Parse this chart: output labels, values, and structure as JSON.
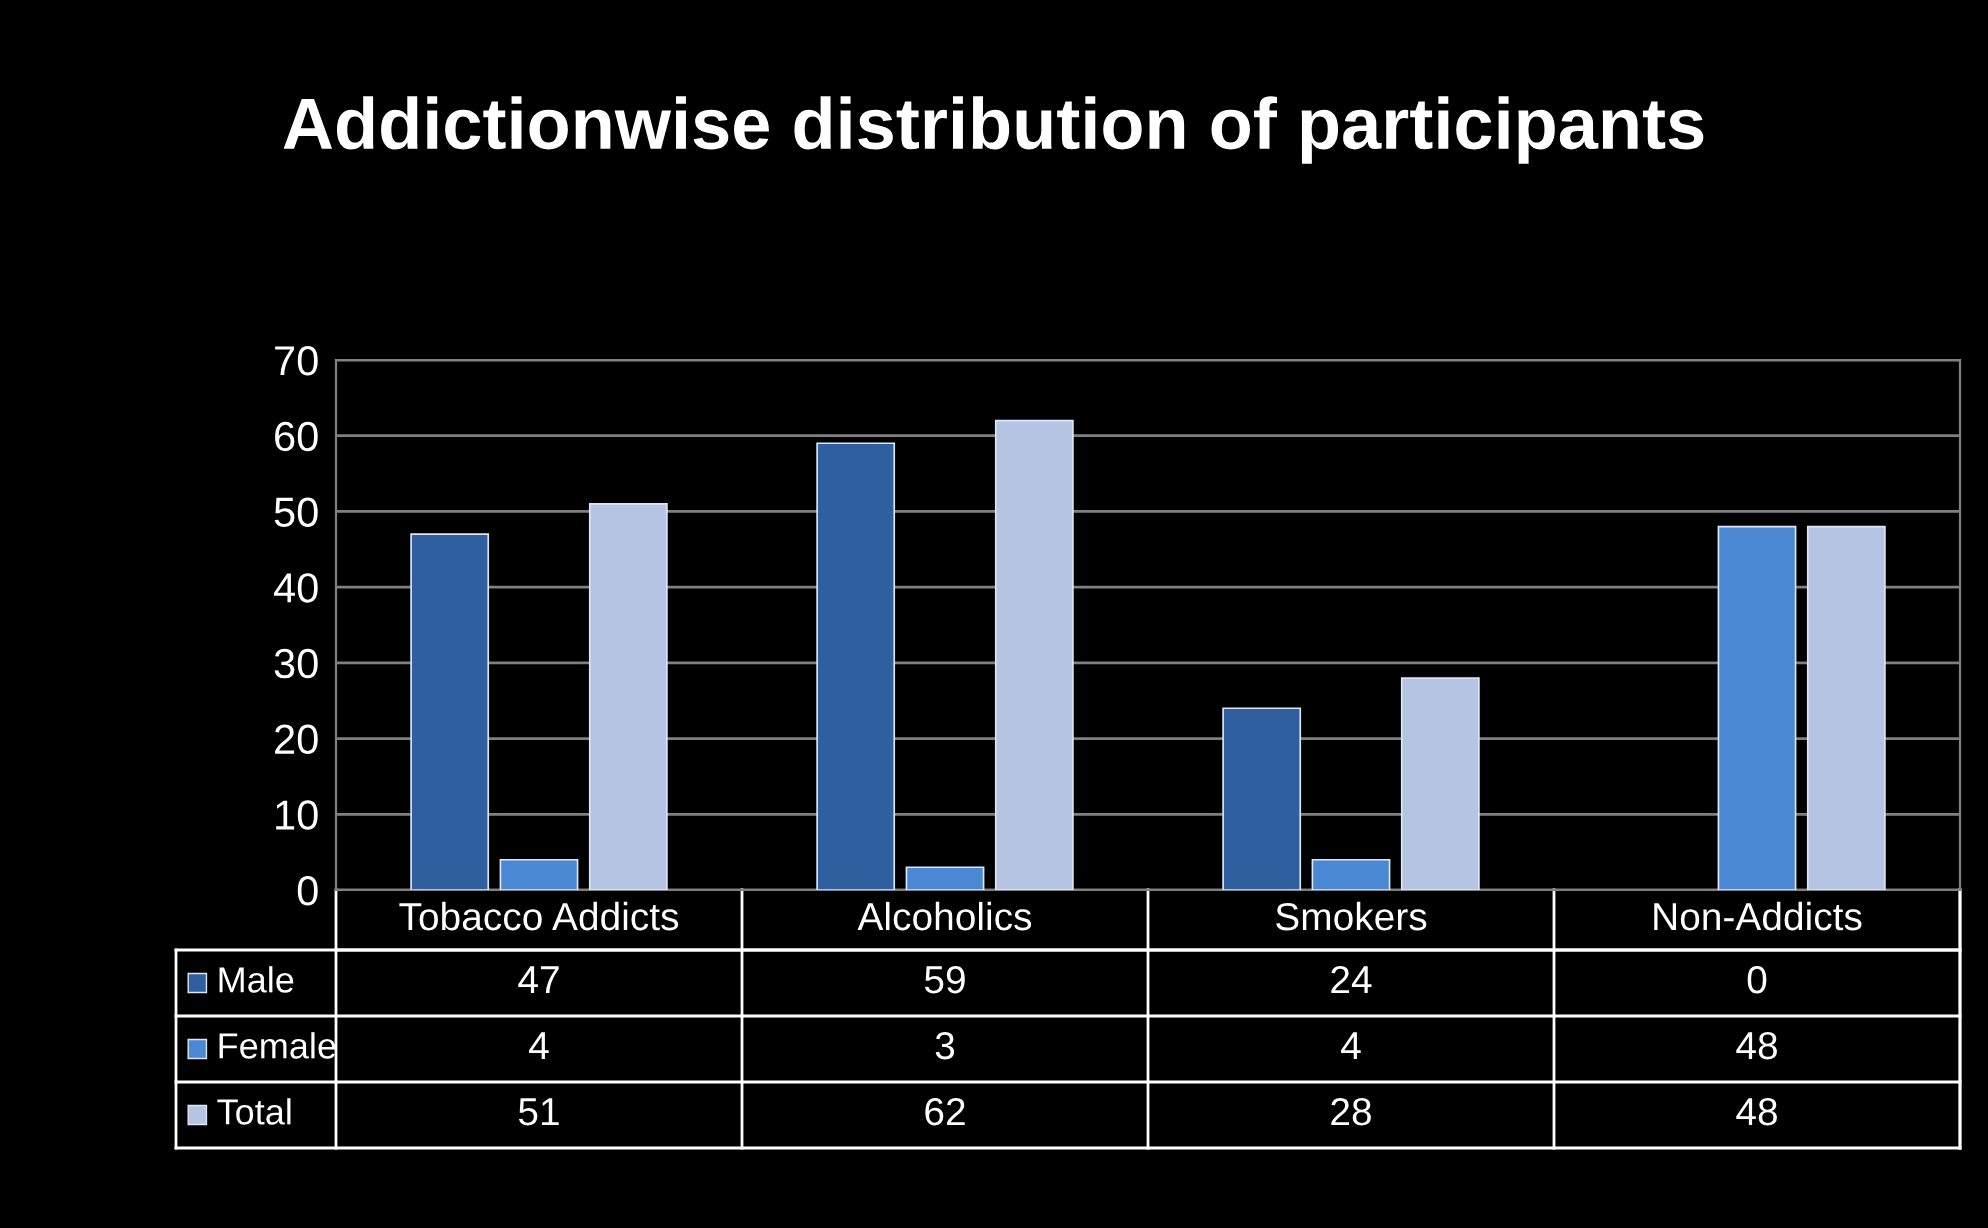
{
  "chart_data": {
    "type": "bar",
    "title": "Addictionwise distribution of participants",
    "categories": [
      "Tobacco Addicts",
      "Alcoholics",
      "Smokers",
      "Non-Addicts"
    ],
    "series": [
      {
        "name": "Male",
        "color": "#2f5f9f",
        "values": [
          47,
          59,
          24,
          0
        ]
      },
      {
        "name": "Female",
        "color": "#4a88d4",
        "values": [
          4,
          3,
          4,
          48
        ]
      },
      {
        "name": "Total",
        "color": "#b4c4e2",
        "values": [
          51,
          62,
          28,
          48
        ]
      }
    ],
    "ylim": [
      0,
      70
    ],
    "yticks": [
      0,
      10,
      20,
      30,
      40,
      50,
      60,
      70
    ],
    "grid": "y",
    "data_labels": true,
    "legend": "bottom left"
  }
}
